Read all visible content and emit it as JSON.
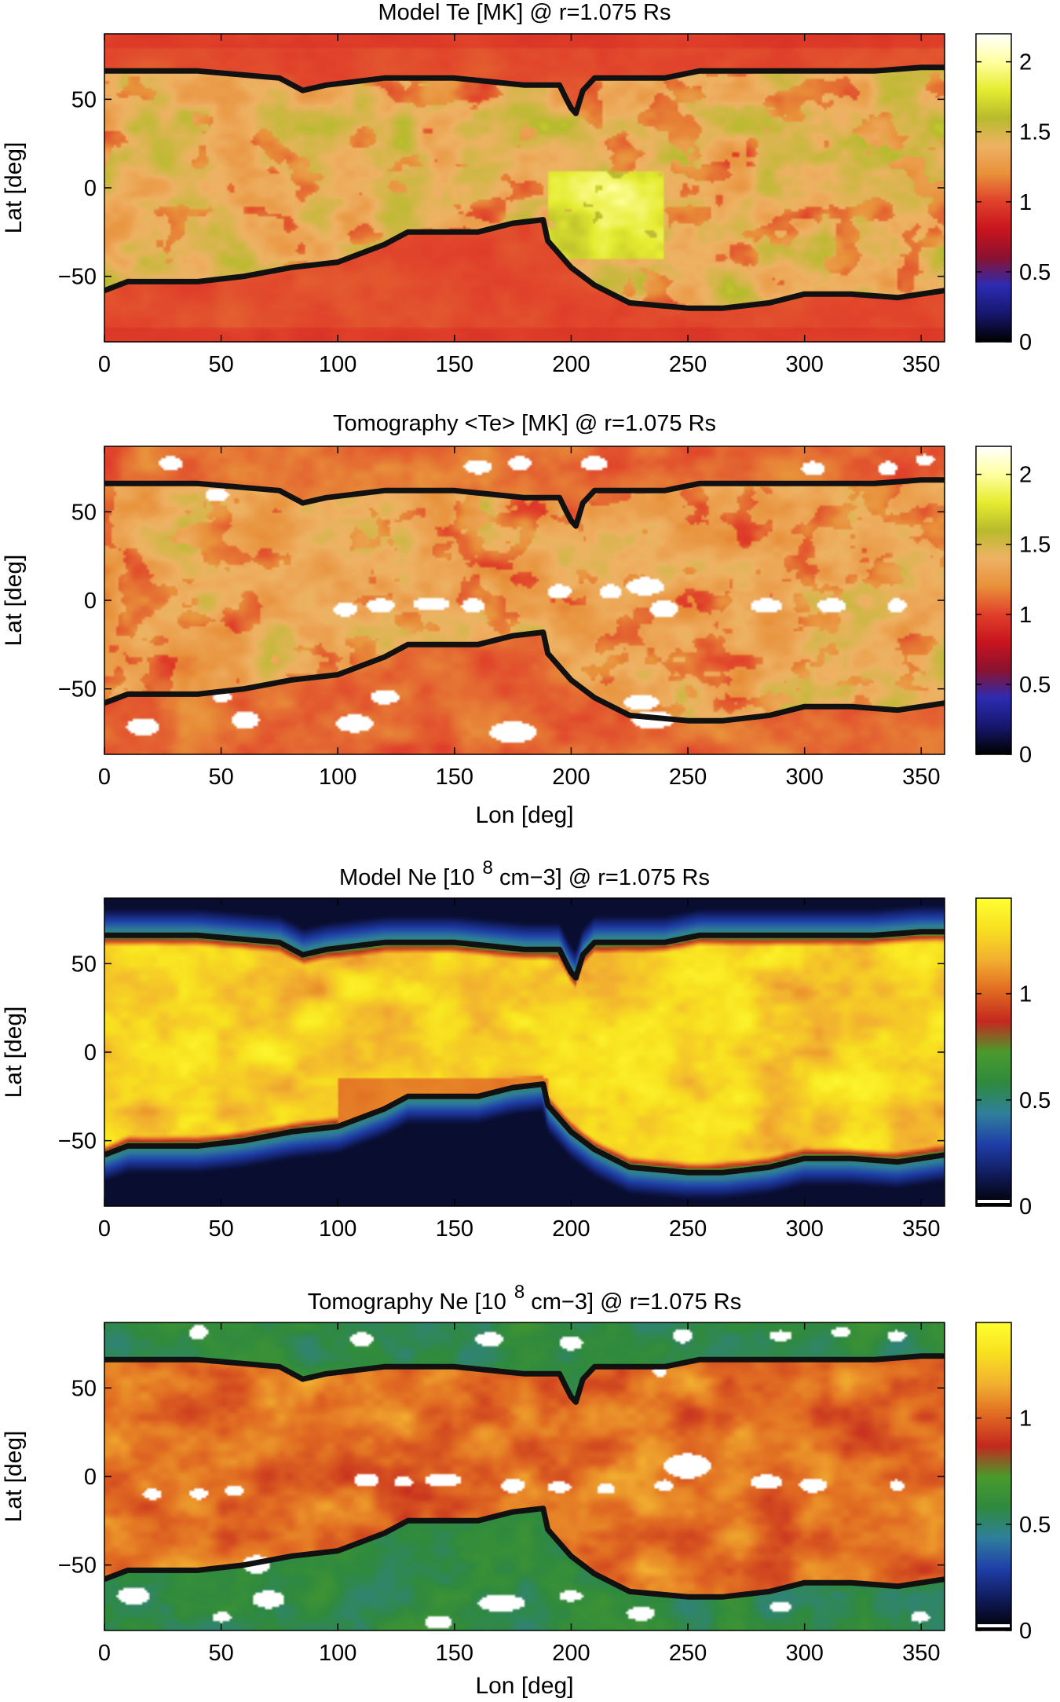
{
  "figure": {
    "panels": [
      {
        "id": "model-te",
        "title": "Model Te [MK] @ r=1.075 Rs",
        "title_sup": "",
        "ylabel": "Lat [deg]",
        "xlabel": "",
        "colorbar": {
          "ticks": [
            "0",
            "0.5",
            "1",
            "1.5",
            "2"
          ],
          "vmin": 0,
          "vmax": 2.2,
          "scheme": "temperature"
        },
        "field": "te_model"
      },
      {
        "id": "tomography-te",
        "title": "Tomography <Te> [MK] @ r=1.075 Rs",
        "title_sup": "",
        "ylabel": "Lat [deg]",
        "xlabel": "Lon [deg]",
        "colorbar": {
          "ticks": [
            "0",
            "0.5",
            "1",
            "1.5",
            "2"
          ],
          "vmin": 0,
          "vmax": 2.2,
          "scheme": "temperature"
        },
        "field": "te_tomo"
      },
      {
        "id": "model-ne",
        "title": "Model Ne [10",
        "title_sup": "8",
        "title_rest": " cm−3] @ r=1.075 Rs",
        "ylabel": "Lat [deg]",
        "xlabel": "",
        "colorbar": {
          "ticks": [
            "0",
            "0.5",
            "1"
          ],
          "vmin": 0,
          "vmax": 1.45,
          "scheme": "density"
        },
        "field": "ne_model"
      },
      {
        "id": "tomography-ne",
        "title": "Tomography Ne [10",
        "title_sup": "8",
        "title_rest": " cm−3] @ r=1.075 Rs",
        "ylabel": "Lat [deg]",
        "xlabel": "Lon [deg]",
        "colorbar": {
          "ticks": [
            "0",
            "0.5",
            "1"
          ],
          "vmin": 0,
          "vmax": 1.45,
          "scheme": "density"
        },
        "field": "ne_tomo"
      }
    ]
  },
  "chart_data": [
    {
      "type": "heatmap",
      "title": "Model Te [MK] @ r=1.075 Rs",
      "xlabel": "",
      "ylabel": "Lat [deg]",
      "xlim": [
        0,
        360
      ],
      "ylim": [
        -87,
        87
      ],
      "xticks": [
        0,
        50,
        100,
        150,
        200,
        250,
        300,
        350
      ],
      "yticks": [
        -50,
        0,
        50
      ],
      "colorbar_range": [
        0,
        2.2
      ],
      "colorbar_ticks": [
        0,
        0.5,
        1,
        1.5,
        2
      ],
      "colormap": [
        "#000000",
        "#17176e",
        "#2c2bb2",
        "#8a1230",
        "#c8141e",
        "#e0402a",
        "#e8903a",
        "#eeb264",
        "#b7bb2c",
        "#e6ec30",
        "#ffffa0",
        "#ffffff"
      ]
    },
    {
      "type": "heatmap",
      "title": "Tomography <Te> [MK] @ r=1.075 Rs",
      "xlabel": "Lon [deg]",
      "ylabel": "Lat [deg]",
      "xlim": [
        0,
        360
      ],
      "ylim": [
        -87,
        87
      ],
      "xticks": [
        0,
        50,
        100,
        150,
        200,
        250,
        300,
        350
      ],
      "yticks": [
        -50,
        0,
        50
      ],
      "colorbar_range": [
        0,
        2.2
      ],
      "colorbar_ticks": [
        0,
        0.5,
        1,
        1.5,
        2
      ],
      "colormap": [
        "#000000",
        "#17176e",
        "#2c2bb2",
        "#8a1230",
        "#c8141e",
        "#e0402a",
        "#e8903a",
        "#eeb264",
        "#b7bb2c",
        "#e6ec30",
        "#ffffa0",
        "#ffffff"
      ]
    },
    {
      "type": "heatmap",
      "title": "Model Ne [10 8 cm−3] @ r=1.075 Rs",
      "xlabel": "",
      "ylabel": "Lat [deg]",
      "xlim": [
        0,
        360
      ],
      "ylim": [
        -87,
        87
      ],
      "xticks": [
        0,
        50,
        100,
        150,
        200,
        250,
        300,
        350
      ],
      "yticks": [
        -50,
        0,
        50
      ],
      "colorbar_range": [
        0,
        1.45
      ],
      "colorbar_ticks": [
        0,
        0.5,
        1
      ],
      "colormap": [
        "#000000",
        "#101a58",
        "#1f3ea8",
        "#2f7f9c",
        "#2f8a3e",
        "#4a9a2c",
        "#c4281e",
        "#e06a22",
        "#f2b030",
        "#f8e020",
        "#ffff30"
      ]
    },
    {
      "type": "heatmap",
      "title": "Tomography Ne [10 8 cm−3] @ r=1.075 Rs",
      "xlabel": "Lon [deg]",
      "ylabel": "Lat [deg]",
      "xlim": [
        0,
        360
      ],
      "ylim": [
        -87,
        87
      ],
      "xticks": [
        0,
        50,
        100,
        150,
        200,
        250,
        300,
        350
      ],
      "yticks": [
        -50,
        0,
        50
      ],
      "colorbar_range": [
        0,
        1.45
      ],
      "colorbar_ticks": [
        0,
        0.5,
        1
      ],
      "colormap": [
        "#000000",
        "#101a58",
        "#1f3ea8",
        "#2f7f9c",
        "#2f8a3e",
        "#4a9a2c",
        "#c4281e",
        "#e06a22",
        "#f2b030",
        "#f8e020",
        "#ffff30"
      ]
    }
  ],
  "boundary": {
    "north": [
      [
        0,
        66
      ],
      [
        40,
        66
      ],
      [
        75,
        62
      ],
      [
        85,
        55
      ],
      [
        95,
        58
      ],
      [
        120,
        62
      ],
      [
        150,
        62
      ],
      [
        180,
        58
      ],
      [
        195,
        58
      ],
      [
        198,
        50
      ],
      [
        200,
        45
      ],
      [
        202,
        42
      ],
      [
        205,
        55
      ],
      [
        210,
        62
      ],
      [
        240,
        62
      ],
      [
        255,
        66
      ],
      [
        270,
        66
      ],
      [
        300,
        66
      ],
      [
        330,
        66
      ],
      [
        350,
        68
      ],
      [
        360,
        68
      ]
    ],
    "south": [
      [
        0,
        -58
      ],
      [
        10,
        -53
      ],
      [
        40,
        -53
      ],
      [
        60,
        -50
      ],
      [
        80,
        -45
      ],
      [
        100,
        -42
      ],
      [
        120,
        -32
      ],
      [
        130,
        -25
      ],
      [
        140,
        -25
      ],
      [
        160,
        -25
      ],
      [
        175,
        -20
      ],
      [
        188,
        -18
      ],
      [
        190,
        -30
      ],
      [
        200,
        -45
      ],
      [
        210,
        -55
      ],
      [
        225,
        -65
      ],
      [
        250,
        -68
      ],
      [
        265,
        -68
      ],
      [
        285,
        -65
      ],
      [
        300,
        -60
      ],
      [
        320,
        -60
      ],
      [
        340,
        -62
      ],
      [
        360,
        -58
      ]
    ]
  }
}
